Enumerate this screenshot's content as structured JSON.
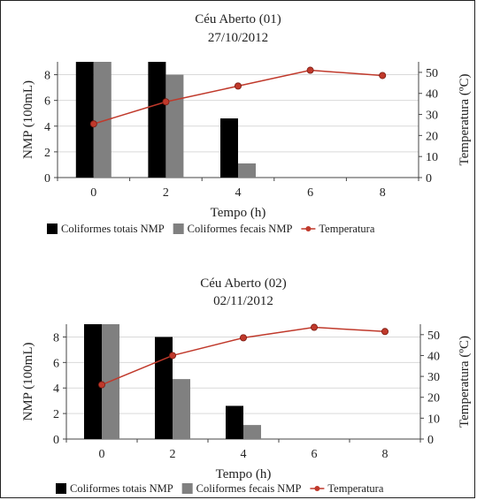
{
  "chart_data": [
    {
      "type": "bar",
      "title": "Céu Aberto (01)",
      "subtitle": "27/10/2012",
      "xlabel": "Tempo (h)",
      "ylabel": "NMP (100mL)",
      "y2label": "Temperatura (ºC)",
      "categories": [
        "0",
        "2",
        "4",
        "6",
        "8"
      ],
      "ylim": [
        0,
        9
      ],
      "yticks": [
        0,
        2,
        4,
        6,
        8
      ],
      "y2lim": [
        0,
        55
      ],
      "y2ticks": [
        0,
        10,
        20,
        30,
        40,
        50
      ],
      "grid": true,
      "legend_position": "bottom",
      "series": [
        {
          "name": "Coliformes totais NMP",
          "type": "bar",
          "color": "#000000",
          "values": [
            9,
            9,
            4.6,
            null,
            null
          ]
        },
        {
          "name": "Coliformes fecais NMP",
          "type": "bar",
          "color": "#808080",
          "values": [
            9,
            8,
            1.1,
            null,
            null
          ]
        },
        {
          "name": "Temperatura",
          "type": "line",
          "axis": "right",
          "color": "#c0392b",
          "values": [
            25.5,
            36,
            43.5,
            51,
            48.5
          ]
        }
      ]
    },
    {
      "type": "bar",
      "title": "Céu Aberto (02)",
      "subtitle": "02/11/2012",
      "xlabel": "Tempo (h)",
      "ylabel": "NMP (100mL)",
      "y2label": "Temperatura (ºC)",
      "categories": [
        "0",
        "2",
        "4",
        "6",
        "8"
      ],
      "ylim": [
        0,
        9
      ],
      "yticks": [
        0,
        2,
        4,
        6,
        8
      ],
      "y2lim": [
        0,
        55
      ],
      "y2ticks": [
        0,
        10,
        20,
        30,
        40,
        50
      ],
      "grid": true,
      "legend_position": "bottom",
      "series": [
        {
          "name": "Coliformes totais NMP",
          "type": "bar",
          "color": "#000000",
          "values": [
            9,
            8,
            2.6,
            null,
            null
          ]
        },
        {
          "name": "Coliformes fecais NMP",
          "type": "bar",
          "color": "#808080",
          "values": [
            9,
            4.7,
            1.1,
            null,
            null
          ]
        },
        {
          "name": "Temperatura",
          "type": "line",
          "axis": "right",
          "color": "#c0392b",
          "values": [
            26,
            40,
            48.5,
            53.5,
            51.5
          ]
        }
      ]
    }
  ]
}
